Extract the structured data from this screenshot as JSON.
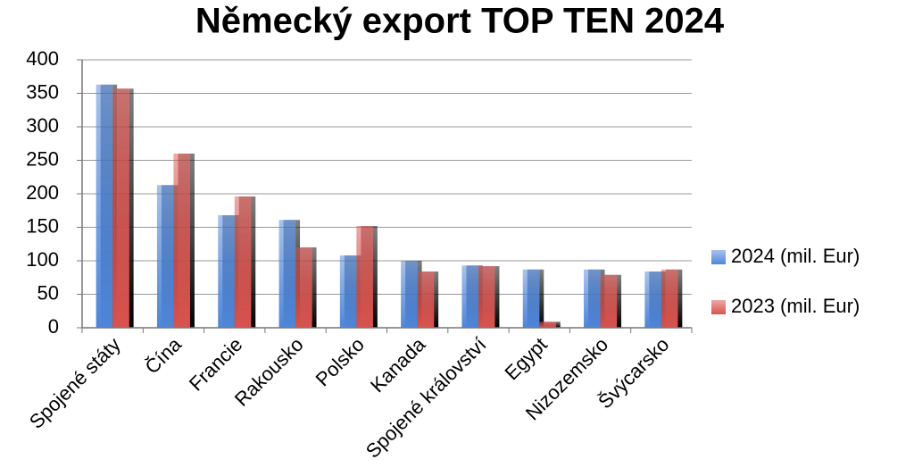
{
  "chart_data": {
    "type": "bar",
    "title": "Německý export TOP TEN 2024",
    "categories": [
      "Spojené státy",
      "Čína",
      "Francie",
      "Rakousko",
      "Polsko",
      "Kanada",
      "Spojené království",
      "Egypt",
      "Nizozemsko",
      "Švýcarsko"
    ],
    "series": [
      {
        "name": "2024 (mil. Eur)",
        "color": "#4f86d9",
        "values": [
          363,
          213,
          168,
          161,
          108,
          100,
          93,
          87,
          87,
          84
        ]
      },
      {
        "name": "2023 (mil. Eur)",
        "color": "#d9534f",
        "values": [
          357,
          260,
          196,
          120,
          152,
          84,
          92,
          9,
          79,
          87
        ]
      }
    ],
    "ylim": [
      0,
      400
    ],
    "yticks": [
      0,
      50,
      100,
      150,
      200,
      250,
      300,
      350,
      400
    ],
    "grid": true,
    "legend": "right"
  }
}
